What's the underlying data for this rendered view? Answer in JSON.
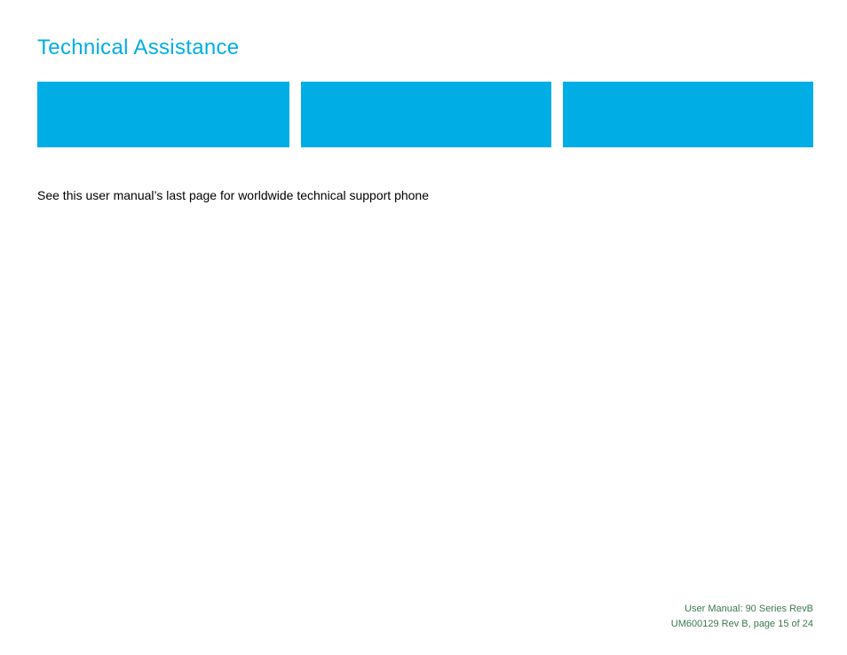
{
  "colors": {
    "accent": "#00aee5",
    "footer_text": "#3a7a4a",
    "body_text": "#000000",
    "background": "#ffffff"
  },
  "header": {
    "title": "Technical Assistance",
    "title_fontsize": 24,
    "title_color": "#00aee5"
  },
  "boxes": {
    "count": 3,
    "fill_color": "#00aee5",
    "height": 74,
    "widths": [
      284,
      282,
      282
    ],
    "gap": 13
  },
  "body": {
    "text": "See this user manual’s last page for worldwide technical support phone",
    "fontsize": 14
  },
  "footer": {
    "line1": "User Manual: 90 Series RevB",
    "line2": "UM600129 Rev B, page 15 of 24",
    "fontsize": 11,
    "color": "#3a7a4a"
  }
}
